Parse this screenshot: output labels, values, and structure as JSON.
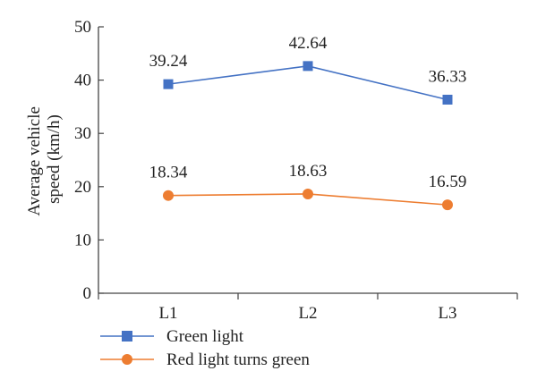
{
  "chart_data": {
    "type": "line",
    "categories": [
      "L1",
      "L2",
      "L3"
    ],
    "series": [
      {
        "name": "Green light",
        "values": [
          39.24,
          42.64,
          36.33
        ],
        "color": "#4472C4",
        "marker": "square"
      },
      {
        "name": "Red light turns green",
        "values": [
          18.34,
          18.63,
          16.59
        ],
        "color": "#ED7D31",
        "marker": "circle"
      }
    ],
    "data_labels": [
      [
        "39.24",
        "42.64",
        "36.33"
      ],
      [
        "18.34",
        "18.63",
        "16.59"
      ]
    ],
    "ylabel_line1": "Average vehicle",
    "ylabel_line2": "speed (km/h)",
    "xlabel": "",
    "ylim": [
      0,
      50
    ],
    "yticks": [
      0,
      10,
      20,
      30,
      40,
      50
    ],
    "grid": false,
    "legend_position": "bottom-left"
  }
}
